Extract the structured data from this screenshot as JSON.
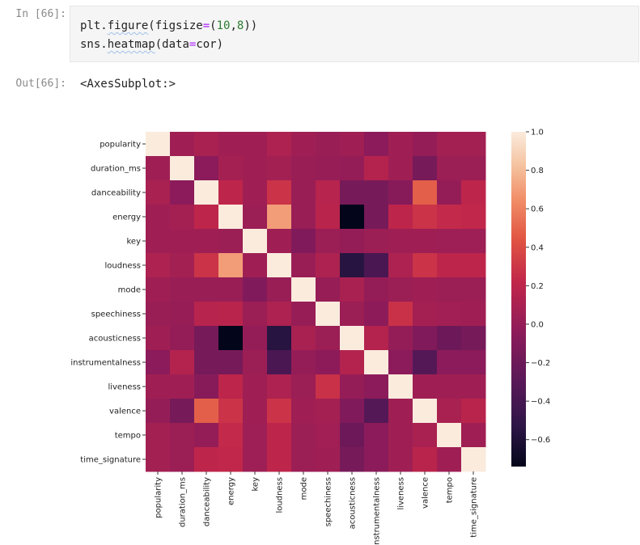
{
  "cells": {
    "input_prompt": "In [66]:",
    "output_prompt": "Out[66]:",
    "code_line1_a": "plt.",
    "code_line1_fn": "figure",
    "code_line1_b": "(figsize",
    "code_line1_eq": "=",
    "code_line1_c": "(",
    "code_line1_n1": "10",
    "code_line1_d": ",",
    "code_line1_n2": "8",
    "code_line1_e": "))",
    "code_line2_a": "sns.",
    "code_line2_fn": "heatmap",
    "code_line2_b": "(data",
    "code_line2_eq": "=",
    "code_line2_c": "cor)",
    "output_text": "<AxesSubplot:>"
  },
  "chart_data": {
    "type": "heatmap",
    "labels": [
      "popularity",
      "duration_ms",
      "danceability",
      "energy",
      "key",
      "loudness",
      "mode",
      "speechiness",
      "acousticness",
      "instrumentalness",
      "liveness",
      "valence",
      "tempo",
      "time_signature"
    ],
    "matrix": [
      [
        1.0,
        0.05,
        0.1,
        0.05,
        0.05,
        0.12,
        0.05,
        0.02,
        0.05,
        -0.05,
        0.05,
        0.0,
        0.07,
        0.07
      ],
      [
        0.05,
        1.0,
        -0.05,
        0.08,
        0.05,
        0.07,
        0.02,
        0.01,
        0.0,
        0.15,
        0.05,
        -0.15,
        0.03,
        0.03
      ],
      [
        0.1,
        -0.05,
        1.0,
        0.2,
        0.05,
        0.28,
        0.02,
        0.17,
        -0.15,
        -0.15,
        -0.07,
        0.48,
        0.0,
        0.2
      ],
      [
        0.05,
        0.08,
        0.2,
        1.0,
        0.03,
        0.7,
        0.02,
        0.18,
        -0.74,
        -0.15,
        0.2,
        0.28,
        0.23,
        0.22
      ],
      [
        0.05,
        0.05,
        0.05,
        0.03,
        1.0,
        0.05,
        -0.1,
        0.03,
        0.0,
        0.03,
        0.05,
        0.05,
        0.04,
        0.04
      ],
      [
        0.12,
        0.07,
        0.28,
        0.7,
        0.05,
        1.0,
        0.02,
        0.12,
        -0.56,
        -0.38,
        0.12,
        0.28,
        0.2,
        0.2
      ],
      [
        0.05,
        0.02,
        0.02,
        0.02,
        -0.1,
        0.02,
        1.0,
        0.01,
        0.1,
        0.0,
        0.03,
        0.05,
        0.03,
        0.03
      ],
      [
        0.02,
        0.01,
        0.17,
        0.18,
        0.03,
        0.12,
        0.01,
        1.0,
        0.03,
        -0.04,
        0.27,
        0.08,
        0.06,
        0.05
      ],
      [
        0.05,
        0.0,
        -0.15,
        -0.74,
        0.0,
        -0.56,
        0.1,
        0.03,
        1.0,
        0.15,
        0.0,
        -0.1,
        -0.2,
        -0.15
      ],
      [
        -0.05,
        0.15,
        -0.15,
        -0.15,
        0.03,
        -0.38,
        0.0,
        -0.04,
        0.15,
        1.0,
        -0.05,
        -0.32,
        -0.05,
        -0.05
      ],
      [
        0.05,
        0.05,
        -0.07,
        0.2,
        0.05,
        0.12,
        0.03,
        0.27,
        0.0,
        -0.05,
        1.0,
        0.05,
        0.05,
        0.05
      ],
      [
        0.0,
        -0.15,
        0.48,
        0.28,
        0.05,
        0.28,
        0.05,
        0.08,
        -0.1,
        -0.32,
        0.05,
        1.0,
        0.1,
        0.18
      ],
      [
        0.07,
        0.03,
        0.0,
        0.23,
        0.04,
        0.2,
        0.03,
        0.06,
        -0.2,
        -0.05,
        0.05,
        0.1,
        1.0,
        0.05
      ],
      [
        0.07,
        0.03,
        0.2,
        0.22,
        0.04,
        0.2,
        0.03,
        0.05,
        -0.15,
        -0.05,
        0.05,
        0.18,
        0.05,
        1.0
      ]
    ],
    "colorbar": {
      "range": [
        -0.74,
        1.0
      ],
      "ticks": [
        1.0,
        0.8,
        0.6,
        0.4,
        0.2,
        0.0,
        -0.2,
        -0.4,
        -0.6
      ],
      "tick_labels": [
        "1.0",
        "0.8",
        "0.6",
        "0.4",
        "0.2",
        "0.0",
        "−0.2",
        "−0.4",
        "−0.6"
      ]
    },
    "colormap": "rocket",
    "title": "",
    "xlabel": "",
    "ylabel": ""
  }
}
